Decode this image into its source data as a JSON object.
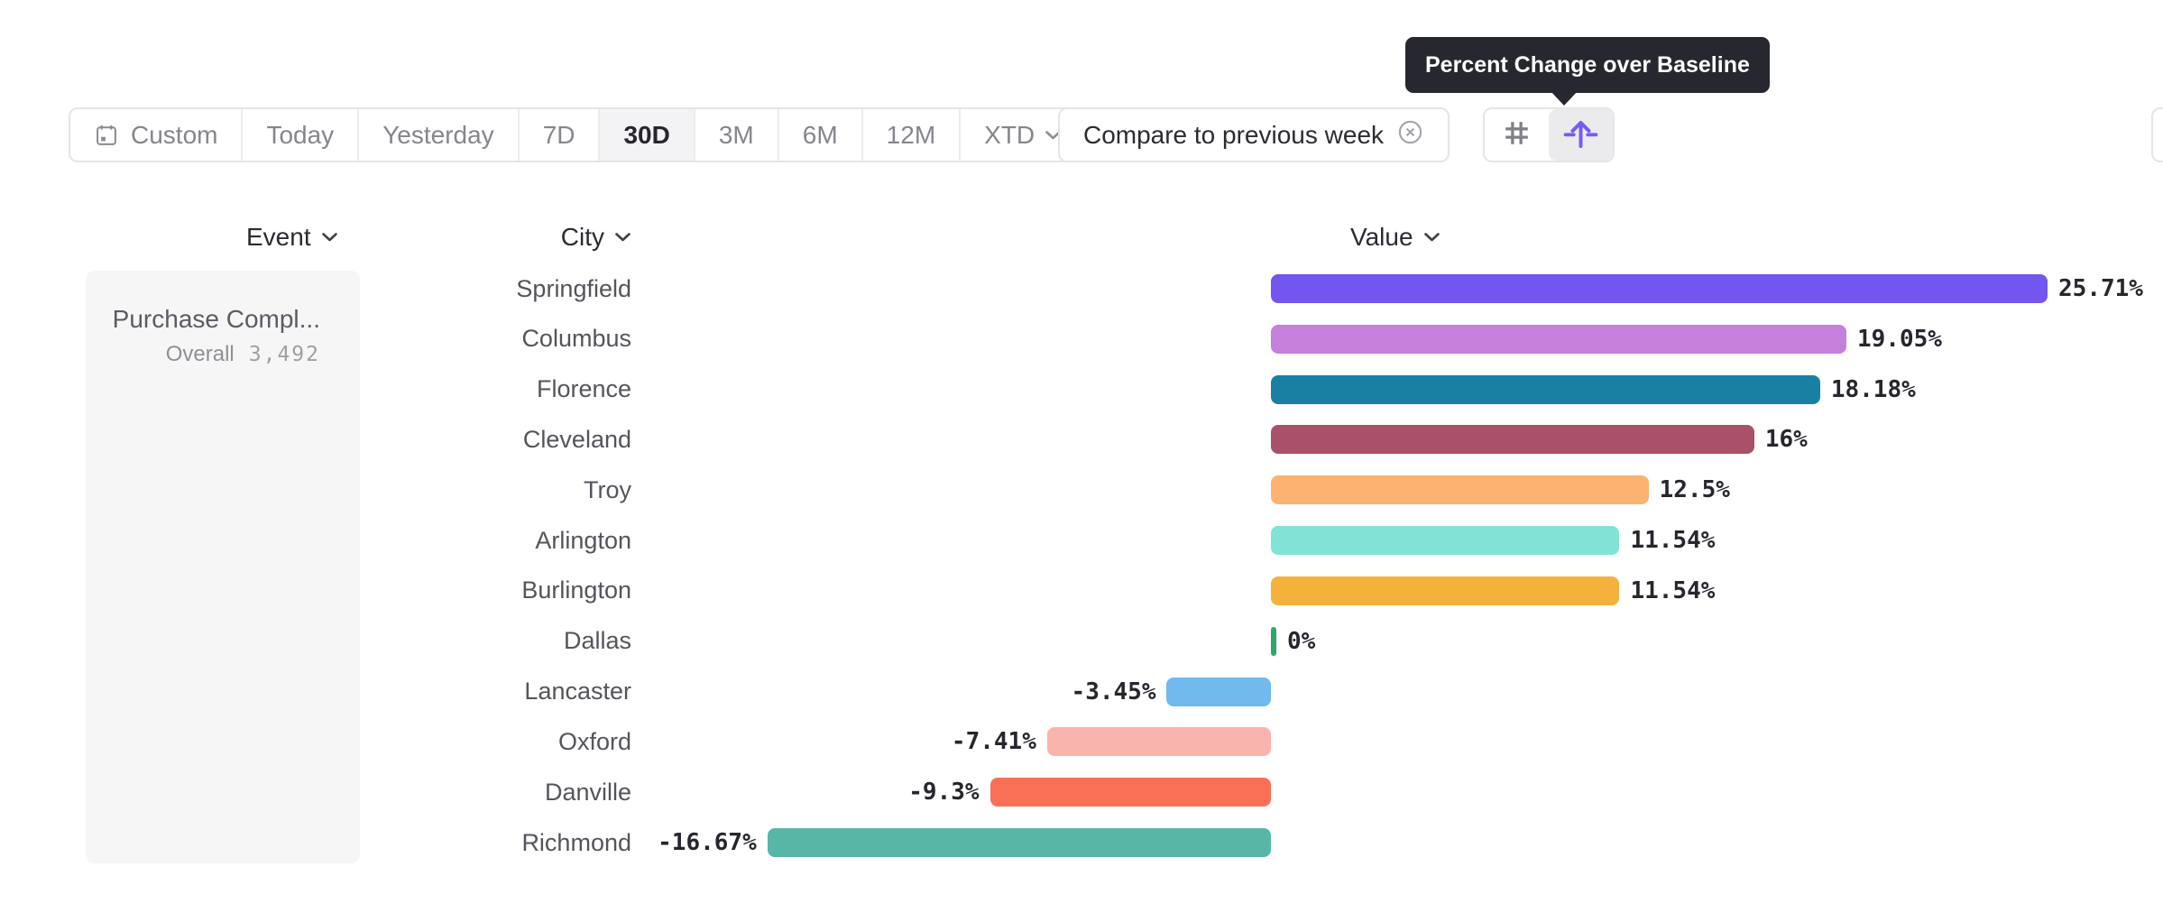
{
  "toolbar": {
    "date_ranges": [
      {
        "label": "Custom",
        "icon": "calendar-icon",
        "selected": false
      },
      {
        "label": "Today",
        "selected": false
      },
      {
        "label": "Yesterday",
        "selected": false
      },
      {
        "label": "7D",
        "selected": false
      },
      {
        "label": "30D",
        "selected": true
      },
      {
        "label": "3M",
        "selected": false
      },
      {
        "label": "6M",
        "selected": false
      },
      {
        "label": "12M",
        "selected": false
      },
      {
        "label": "XTD",
        "selected": false,
        "chevron": true
      }
    ],
    "compare": {
      "label": "Compare to previous week",
      "icon": "circle-x-icon"
    },
    "view_toggle": [
      {
        "name": "grid-view",
        "icon": "hash-icon",
        "selected": false
      },
      {
        "name": "baseline-view",
        "icon": "baseline-arrow-icon",
        "selected": true
      }
    ]
  },
  "tooltip": {
    "text": "Percent Change over Baseline"
  },
  "columns": {
    "event": "Event",
    "city": "City",
    "value": "Value"
  },
  "event_card": {
    "title": "Purchase Compl...",
    "overall_label": "Overall",
    "overall_value": "3,492"
  },
  "chart_data": {
    "type": "bar",
    "orientation": "horizontal",
    "title": "Percent Change over Baseline",
    "value_unit": "%",
    "categories": [
      "Springfield",
      "Columbus",
      "Florence",
      "Cleveland",
      "Troy",
      "Arlington",
      "Burlington",
      "Dallas",
      "Lancaster",
      "Oxford",
      "Danville",
      "Richmond"
    ],
    "values": [
      25.71,
      19.05,
      18.18,
      16,
      12.5,
      11.54,
      11.54,
      0,
      -3.45,
      -7.41,
      -9.3,
      -16.67
    ],
    "value_labels": [
      "25.71%",
      "19.05%",
      "18.18%",
      "16%",
      "12.5%",
      "11.54%",
      "11.54%",
      "0%",
      "-3.45%",
      "-7.41%",
      "-9.3%",
      "-16.67%"
    ],
    "bar_colors": [
      "#7355f0",
      "#c480da",
      "#1980a3",
      "#a85169",
      "#fcb271",
      "#80e3d5",
      "#f4b23d",
      "#2ca86b",
      "#70baee",
      "#f9b4ae",
      "#fa7057",
      "#58b6a7"
    ],
    "xlim": [
      -16.67,
      25.71
    ],
    "baseline": 0,
    "legend": "none",
    "grid": "off"
  },
  "colors": {
    "accent_purple": "#7a5af5",
    "tooltip_bg": "#27282f",
    "selected_segment_bg": "#f3f3f5",
    "selected_icon_bg": "#ebebee",
    "border": "#e5e5e8",
    "text_dark": "#2b2c33",
    "text_gray": "#85868c",
    "panel_bg": "#f6f6f7",
    "zero_tick_green": "#2ca86b"
  }
}
